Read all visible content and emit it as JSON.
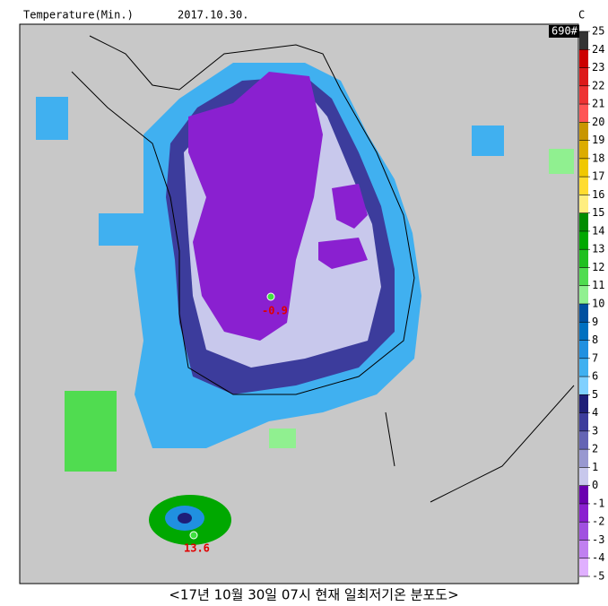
{
  "header": {
    "title": "Temperature(Min.)",
    "date": "2017.10.30.",
    "unit": "C"
  },
  "station_count": "690#",
  "colorbar": {
    "ticks": [
      25,
      24,
      23,
      22,
      21,
      20,
      19,
      18,
      17,
      16,
      15,
      14,
      13,
      12,
      11,
      10,
      9,
      8,
      7,
      6,
      5,
      4,
      3,
      2,
      1,
      0,
      -1,
      -2,
      -3,
      -4,
      -5
    ],
    "colors": [
      "#333333",
      "#cc0000",
      "#dd1a1a",
      "#ee3333",
      "#ff5555",
      "#c89600",
      "#dcac00",
      "#f0c800",
      "#ffdc30",
      "#ffee80",
      "#008c00",
      "#00a800",
      "#20c020",
      "#50dc50",
      "#90f090",
      "#0050a0",
      "#0070c0",
      "#2090e0",
      "#40b0f0",
      "#80d0ff",
      "#1e1e78",
      "#3c3c9c",
      "#6464b4",
      "#9898d0",
      "#c8c8ec",
      "#6a00b0",
      "#8a20d0",
      "#a050e0",
      "#c080f0",
      "#e0b0ff"
    ]
  },
  "annotations": [
    {
      "label": "-0.9"
    },
    {
      "label": "13.6"
    }
  ],
  "caption": "<17년 10월 30일 07시 현재 일최저기온 분포도>"
}
